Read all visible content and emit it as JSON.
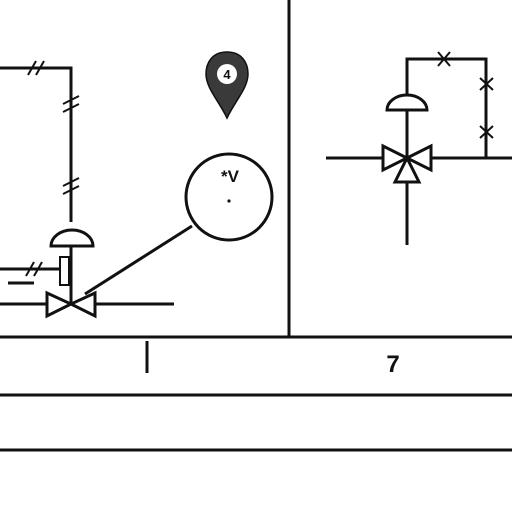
{
  "cells": {
    "right_number": "7"
  },
  "indicator": {
    "label": "*V"
  },
  "marker": {
    "label": "4"
  },
  "colors": {
    "line": "#111111",
    "marker_fill": "#3a3a3a",
    "background": "#ffffff"
  },
  "icons": [
    "location-pin-icon",
    "globe-valve-icon",
    "three-way-valve-icon",
    "actuator-icon"
  ]
}
